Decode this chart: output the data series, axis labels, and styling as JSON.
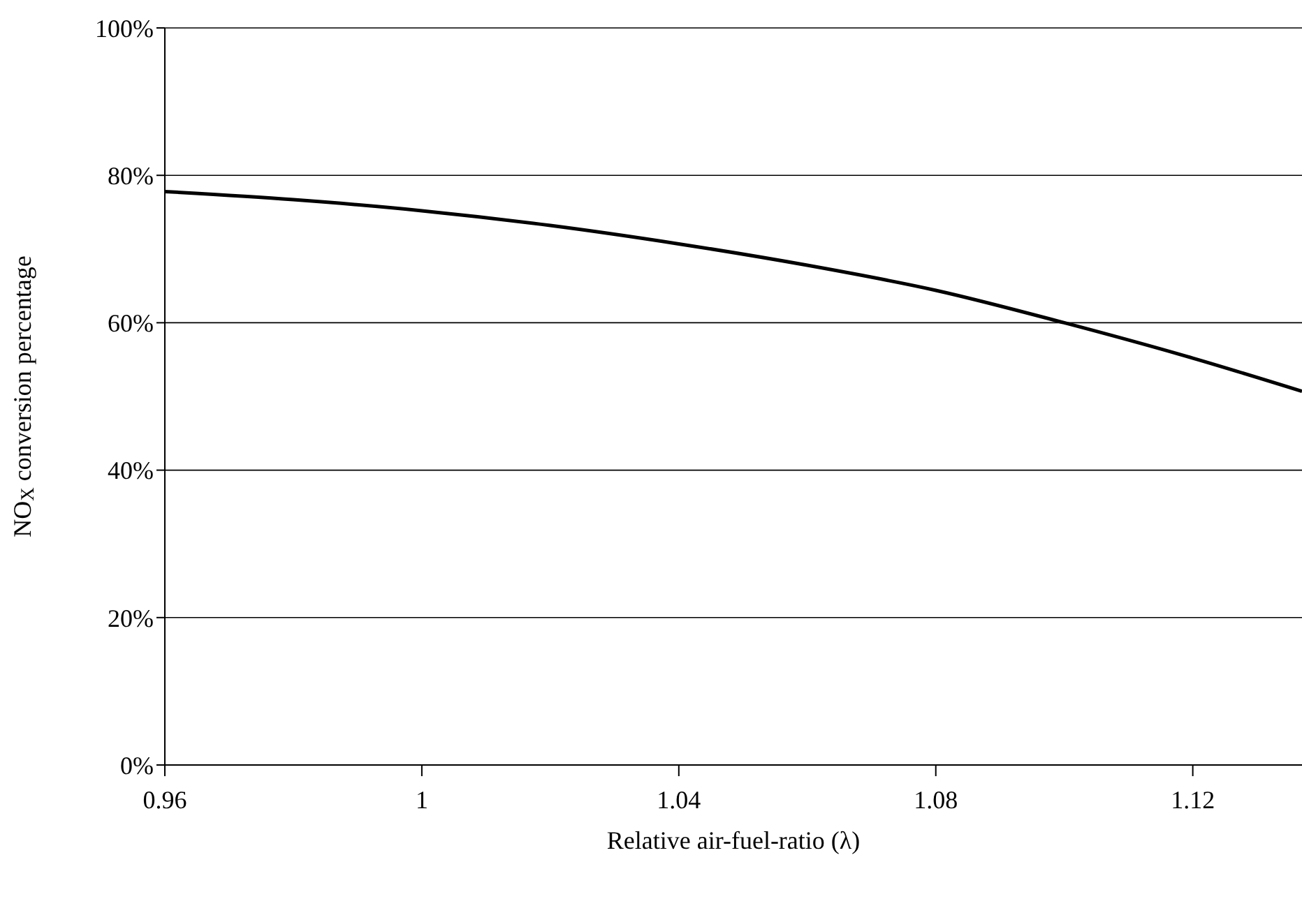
{
  "chart_data": {
    "type": "line",
    "xlabel": "Relative air-fuel-ratio (λ)",
    "ylabel": "NO$_{X}$ conversion percentage",
    "x": [
      0.96,
      0.98,
      1.0,
      1.02,
      1.04,
      1.06,
      1.08,
      1.1,
      1.12,
      1.137
    ],
    "series": [
      {
        "color": "#000000",
        "values": [
          77.8,
          76.7,
          75.2,
          73.2,
          70.7,
          67.8,
          64.4,
          60,
          55.2,
          50.7
        ]
      }
    ],
    "xlim": [
      0.96,
      1.137
    ],
    "xticks": [
      0.96,
      1,
      1.04,
      1.08,
      1.12
    ],
    "ylim": [
      0,
      100
    ],
    "yticks": [
      {
        "value": 0,
        "label": "0%"
      },
      {
        "value": 20,
        "label": "20%"
      },
      {
        "value": 40,
        "label": "40%"
      },
      {
        "value": 60,
        "label": "60%"
      },
      {
        "value": 80,
        "label": "80%"
      },
      {
        "value": 100,
        "label": "100%"
      }
    ],
    "grid": "y",
    "legend": false,
    "marker": "none",
    "line_style": "solid"
  }
}
